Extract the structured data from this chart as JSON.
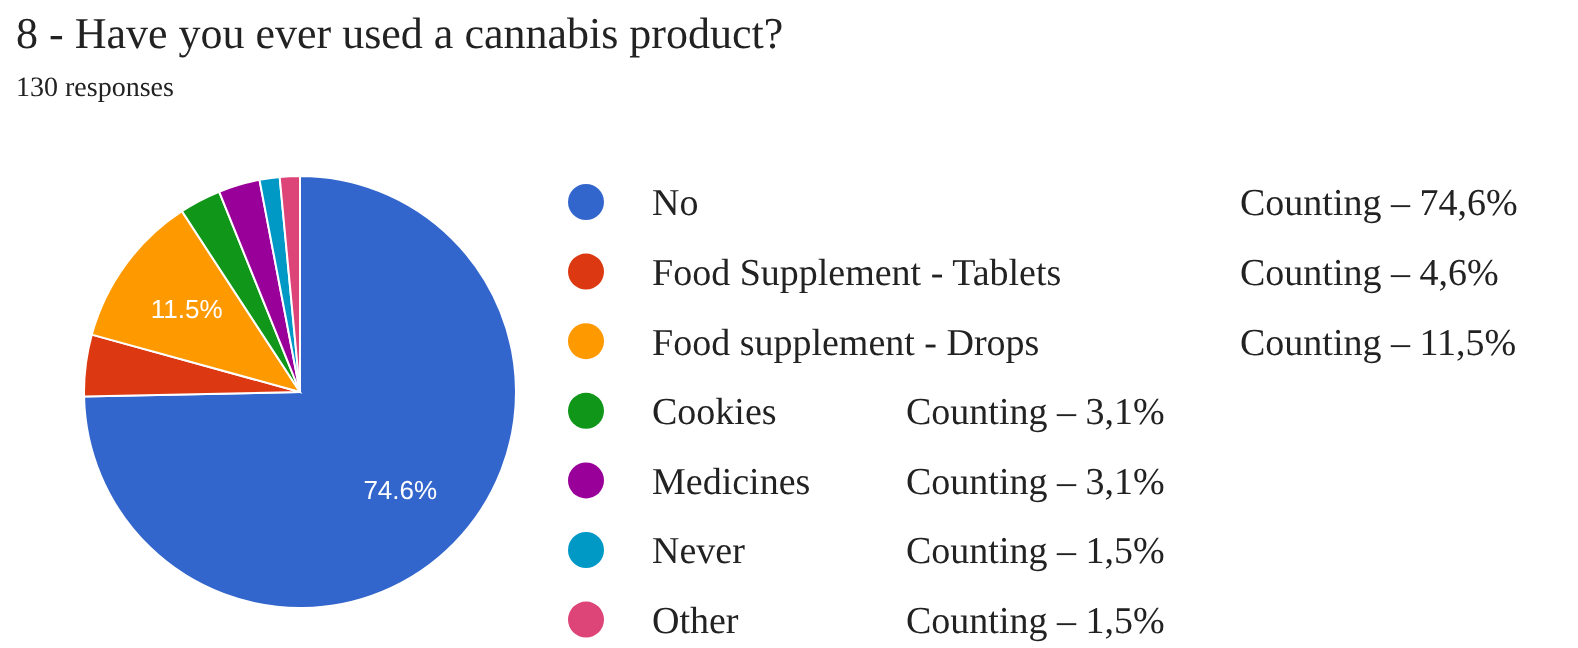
{
  "chart_data": {
    "type": "pie",
    "title": "8 - Have you ever used a cannabis product?",
    "subtitle": "130 responses",
    "categories": [
      "No",
      "Food Supplement - Tablets",
      "Food supplement - Drops",
      "Cookies",
      "Medicines",
      "Never",
      "Other"
    ],
    "values": [
      74.6,
      4.6,
      11.5,
      3.1,
      3.1,
      1.5,
      1.5
    ],
    "colors": [
      "#3366cc",
      "#dc3912",
      "#ff9900",
      "#109618",
      "#990099",
      "#0099c6",
      "#dd4477"
    ],
    "value_labels": [
      "74.6%",
      null,
      "11.5%",
      null,
      null,
      null,
      null
    ],
    "legend": "right",
    "annotations": [
      "Counting – 74,6%",
      "Counting – 4,6%",
      "Counting – 11,5%",
      "Counting – 3,1%",
      "Counting – 3,1%",
      "Counting – 1,5%",
      "Counting – 1,5%"
    ]
  }
}
